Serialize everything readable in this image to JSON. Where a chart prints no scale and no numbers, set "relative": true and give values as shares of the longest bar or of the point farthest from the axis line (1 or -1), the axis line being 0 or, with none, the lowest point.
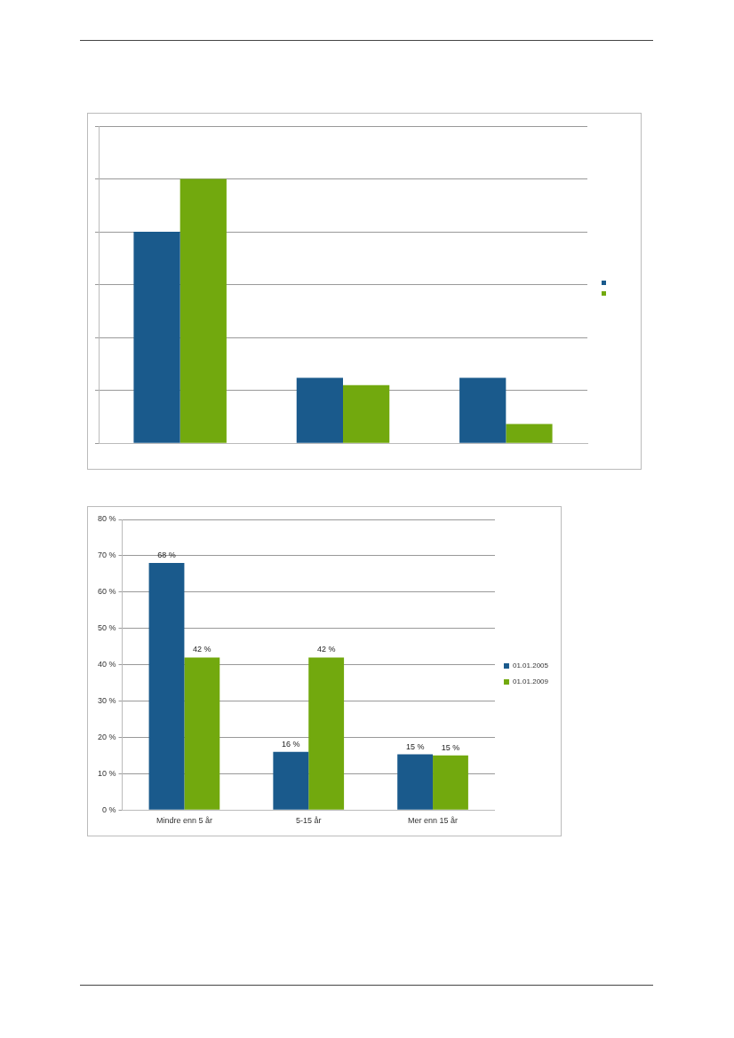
{
  "chart_data": [
    {
      "type": "bar",
      "relative": true,
      "categories": [
        null,
        null,
        null
      ],
      "grid": "y",
      "series": [
        {
          "color": "#1a5a8c",
          "values": [
            0.8,
            0.248,
            0.248
          ]
        },
        {
          "color": "#72a90e",
          "values": [
            1,
            0.22,
            0.073
          ]
        }
      ]
    },
    {
      "type": "bar",
      "categories": [
        "Mindre enn 5 år",
        "5-15 år",
        "Mer enn 15 år"
      ],
      "ylim": [
        0,
        80
      ],
      "yticks": [
        {
          "value": 0,
          "label": "0 %"
        },
        {
          "value": 10,
          "label": "10 %"
        },
        {
          "value": 20,
          "label": "20 %"
        },
        {
          "value": 30,
          "label": "30 %"
        },
        {
          "value": 40,
          "label": "40 %"
        },
        {
          "value": 50,
          "label": "50 %"
        },
        {
          "value": 60,
          "label": "60 %"
        },
        {
          "value": 70,
          "label": "70 %"
        },
        {
          "value": 80,
          "label": "80 %"
        }
      ],
      "grid": "y",
      "legend": "right",
      "series": [
        {
          "name": "01.01.2005",
          "color": "#1a5a8c",
          "values": [
            68,
            16,
            15.3
          ],
          "value_labels": [
            "68 %",
            "16 %",
            "15 %"
          ]
        },
        {
          "name": "01.01.2009",
          "color": "#72a90e",
          "values": [
            42,
            42,
            15
          ],
          "value_labels": [
            "42 %",
            "42 %",
            "15 %"
          ]
        }
      ]
    }
  ]
}
